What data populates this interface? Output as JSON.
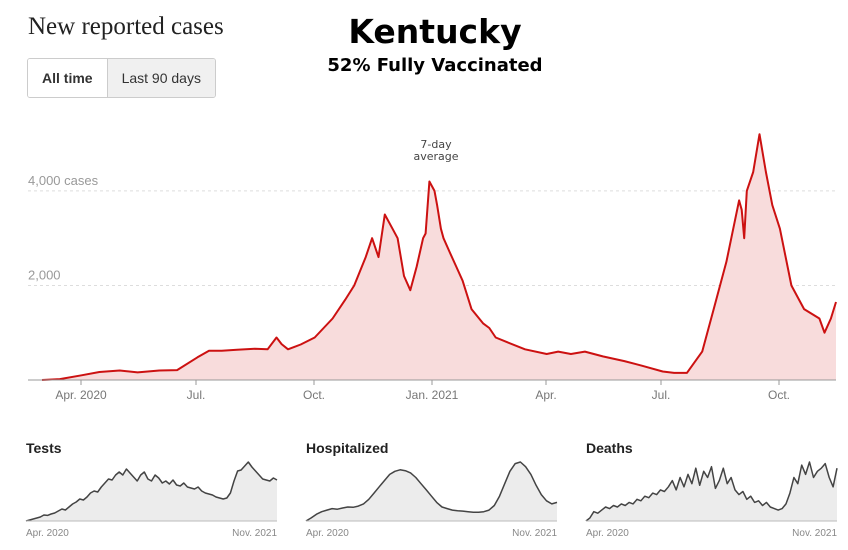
{
  "header": {
    "title": "New reported cases",
    "state": "Kentucky",
    "subtitle": "52% Fully Vaccinated"
  },
  "toggle": {
    "all_time": "All time",
    "last_90": "Last 90 days"
  },
  "chart_data": [
    {
      "type": "area",
      "title": "New reported cases",
      "ylabel_unit": "cases",
      "ylim": [
        0,
        5500
      ],
      "y_ticks": [
        {
          "value": 2000,
          "label": "2,000"
        },
        {
          "value": 4000,
          "label": "4,000 cases"
        }
      ],
      "x_ticks": [
        "Apr. 2020",
        "Jul.",
        "Oct.",
        "Jan. 2021",
        "Apr.",
        "Jul.",
        "Oct."
      ],
      "annotation": "7-day average",
      "line_color": "#cc1111",
      "fill_color": "#f8dcdc",
      "grid": "horizontal dashed",
      "series": [
        {
          "x": [
            "2020-03-01",
            "2020-03-15",
            "2020-04-01",
            "2020-04-15",
            "2020-05-01",
            "2020-05-15",
            "2020-06-01",
            "2020-06-15",
            "2020-07-01",
            "2020-07-10",
            "2020-07-20",
            "2020-08-01",
            "2020-08-15",
            "2020-08-25",
            "2020-09-01",
            "2020-09-05",
            "2020-09-10",
            "2020-09-15",
            "2020-09-20",
            "2020-10-01",
            "2020-10-15",
            "2020-10-25",
            "2020-11-01",
            "2020-11-10",
            "2020-11-15",
            "2020-11-20",
            "2020-11-25",
            "2020-12-01",
            "2020-12-05",
            "2020-12-10",
            "2020-12-15",
            "2020-12-20",
            "2020-12-25",
            "2020-12-27",
            "2020-12-30",
            "2021-01-03",
            "2021-01-05",
            "2021-01-08",
            "2021-01-10",
            "2021-01-15",
            "2021-01-20",
            "2021-01-25",
            "2021-02-01",
            "2021-02-10",
            "2021-02-15",
            "2021-02-20",
            "2021-03-01",
            "2021-03-15",
            "2021-04-01",
            "2021-04-10",
            "2021-04-20",
            "2021-05-01",
            "2021-05-15",
            "2021-06-01",
            "2021-06-15",
            "2021-07-01",
            "2021-07-10",
            "2021-07-20",
            "2021-08-01",
            "2021-08-10",
            "2021-08-20",
            "2021-08-30",
            "2021-09-01",
            "2021-09-03",
            "2021-09-05",
            "2021-09-10",
            "2021-09-15",
            "2021-09-20",
            "2021-09-25",
            "2021-10-01",
            "2021-10-10",
            "2021-10-20",
            "2021-11-01",
            "2021-11-05",
            "2021-11-10",
            "2021-11-14"
          ],
          "y": [
            0,
            20,
            100,
            170,
            200,
            160,
            200,
            210,
            480,
            620,
            620,
            640,
            660,
            650,
            900,
            760,
            650,
            700,
            750,
            900,
            1300,
            1700,
            2000,
            2600,
            3000,
            2600,
            3500,
            3200,
            3000,
            2200,
            1900,
            2400,
            3000,
            3100,
            4200,
            4000,
            3700,
            3200,
            3000,
            2700,
            2400,
            2100,
            1500,
            1200,
            1100,
            900,
            800,
            650,
            550,
            600,
            550,
            600,
            500,
            400,
            300,
            180,
            150,
            150,
            600,
            1500,
            2500,
            3800,
            3600,
            3000,
            4000,
            4400,
            5200,
            4400,
            3700,
            3200,
            2000,
            1500,
            1300,
            1000,
            1300,
            1650
          ]
        }
      ]
    },
    {
      "type": "area",
      "title": "Tests",
      "x_ticks": [
        "Apr. 2020",
        "Nov. 2021"
      ],
      "series": [
        {
          "y": [
            0,
            5,
            10,
            15,
            20,
            30,
            28,
            35,
            40,
            50,
            60,
            55,
            70,
            85,
            95,
            110,
            105,
            120,
            140,
            150,
            145,
            170,
            190,
            210,
            205,
            230,
            245,
            230,
            260,
            240,
            220,
            200,
            230,
            245,
            210,
            200,
            230,
            215,
            190,
            200,
            185,
            205,
            180,
            175,
            190,
            170,
            165,
            160,
            170,
            150,
            140,
            135,
            130,
            120,
            115,
            110,
            115,
            140,
            200,
            250,
            255,
            275,
            295,
            270,
            250,
            230,
            210,
            205,
            200,
            215,
            205
          ]
        }
      ]
    },
    {
      "type": "area",
      "title": "Hospitalized",
      "x_ticks": [
        "Apr. 2020",
        "Nov. 2021"
      ],
      "series": [
        {
          "y": [
            0,
            10,
            22,
            30,
            35,
            40,
            38,
            42,
            45,
            44,
            48,
            55,
            70,
            90,
            110,
            130,
            150,
            160,
            165,
            162,
            155,
            140,
            120,
            100,
            80,
            60,
            45,
            40,
            35,
            33,
            32,
            30,
            28,
            28,
            30,
            35,
            50,
            80,
            120,
            160,
            185,
            190,
            175,
            150,
            115,
            85,
            65,
            55,
            60
          ]
        }
      ]
    },
    {
      "type": "area",
      "title": "Deaths",
      "x_ticks": [
        "Apr. 2020",
        "Nov. 2021"
      ],
      "series": [
        {
          "y": [
            0,
            10,
            30,
            25,
            35,
            45,
            40,
            50,
            45,
            55,
            50,
            60,
            55,
            70,
            65,
            80,
            75,
            90,
            85,
            100,
            95,
            110,
            130,
            100,
            140,
            110,
            150,
            120,
            170,
            115,
            160,
            140,
            175,
            105,
            130,
            170,
            120,
            140,
            100,
            85,
            95,
            70,
            80,
            60,
            65,
            50,
            60,
            45,
            40,
            35,
            40,
            55,
            90,
            140,
            120,
            180,
            150,
            190,
            140,
            160,
            170,
            185,
            140,
            110,
            170
          ]
        }
      ]
    }
  ]
}
